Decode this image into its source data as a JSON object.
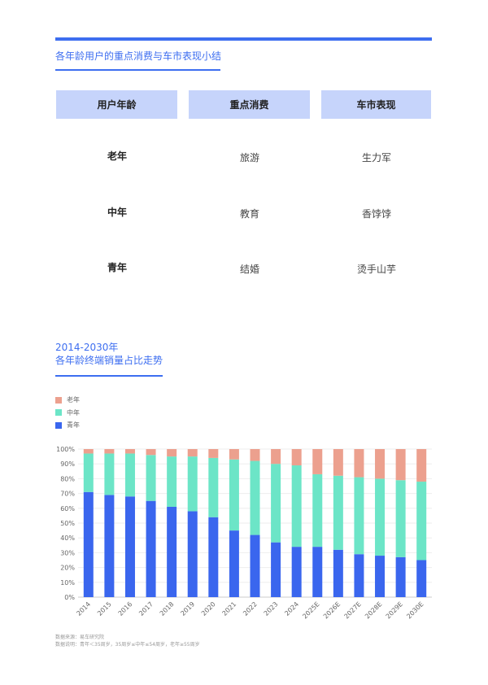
{
  "section1": {
    "title": "各年龄用户的重点消费与车市表现小结",
    "headers": [
      "用户年龄",
      "重点消费",
      "车市表现"
    ],
    "rows": [
      {
        "age": "老年",
        "consumption": "旅游",
        "market": "生力军"
      },
      {
        "age": "中年",
        "consumption": "教育",
        "market": "香饽饽"
      },
      {
        "age": "青年",
        "consumption": "结婚",
        "market": "烫手山芋"
      }
    ]
  },
  "section2": {
    "title_line1": "2014-2030年",
    "title_line2": "各年龄终端销量占比走势"
  },
  "chart_data": {
    "type": "bar",
    "stacked": true,
    "categories": [
      "2014",
      "2015",
      "2016",
      "2017",
      "2018",
      "2019",
      "2020",
      "2021",
      "2022",
      "2023",
      "2024",
      "2025E",
      "2026E",
      "2027E",
      "2028E",
      "2029E",
      "2030E"
    ],
    "series": [
      {
        "name": "青年",
        "color": "#3a66ee",
        "values": [
          71,
          69,
          68,
          65,
          61,
          58,
          54,
          45,
          42,
          37,
          34,
          34,
          32,
          29,
          28,
          27,
          25
        ]
      },
      {
        "name": "中年",
        "color": "#6ce5c7",
        "values": [
          26,
          28,
          29,
          31,
          34,
          37,
          40,
          48,
          50,
          53,
          55,
          49,
          50,
          52,
          52,
          52,
          53
        ]
      },
      {
        "name": "老年",
        "color": "#eca08e",
        "values": [
          3,
          3,
          3,
          4,
          5,
          5,
          6,
          7,
          8,
          10,
          11,
          17,
          18,
          19,
          20,
          21,
          22
        ]
      }
    ],
    "legend_order": [
      "老年",
      "中年",
      "青年"
    ],
    "ylim": [
      0,
      100
    ],
    "yticks": [
      "0%",
      "10%",
      "20%",
      "30%",
      "40%",
      "50%",
      "60%",
      "70%",
      "80%",
      "90%",
      "100%"
    ],
    "grid": true,
    "legend_position": "top-left"
  },
  "footnotes": {
    "source": "数据来源：易车研究院",
    "note": "数据说明：青年＜35周岁，35周岁≤中年≤54周岁，老年≥55周岁"
  }
}
